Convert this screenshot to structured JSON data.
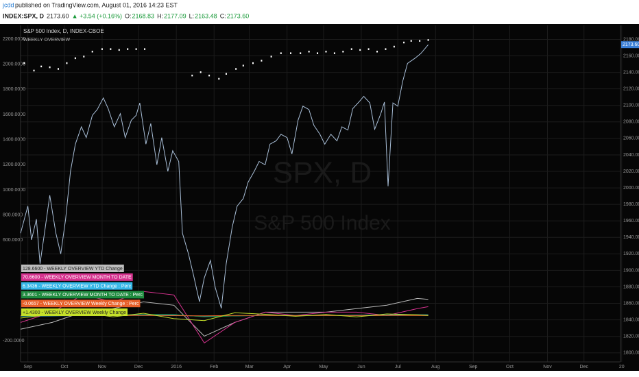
{
  "header": {
    "author": "jcdd",
    "published": "published on TradingView.com, August 01, 2016 14:23 EST",
    "symbol": "INDEX:SPX, D",
    "last": "2173.60",
    "change": "▲ +3.54 (+0.16%)",
    "open_label": "O:",
    "open": "2168.83",
    "high_label": "H:",
    "high": "2177.09",
    "low_label": "L:",
    "low": "2163.48",
    "close_label": "C:",
    "close": "2173.60"
  },
  "chart_data": {
    "type": "line",
    "title": "S&P 500 Index, D, INDEX-CBOE",
    "subtitle": "WEEKLY OVERVIEW",
    "watermark": [
      "SPX, D",
      "S&P 500 Index"
    ],
    "last_price_label": "2173.60",
    "grid": true,
    "xlim": [
      -6,
      487
    ],
    "xticks": [
      {
        "value": 0,
        "label": "Sep"
      },
      {
        "value": 30,
        "label": "Oct"
      },
      {
        "value": 61,
        "label": "Nov"
      },
      {
        "value": 91,
        "label": "Dec"
      },
      {
        "value": 122,
        "label": "2016"
      },
      {
        "value": 153,
        "label": "Feb"
      },
      {
        "value": 182,
        "label": "Mar"
      },
      {
        "value": 213,
        "label": "Apr"
      },
      {
        "value": 243,
        "label": "May"
      },
      {
        "value": 274,
        "label": "Jun"
      },
      {
        "value": 304,
        "label": "Jul"
      },
      {
        "value": 335,
        "label": "Aug"
      },
      {
        "value": 366,
        "label": "Sep"
      },
      {
        "value": 396,
        "label": "Oct"
      },
      {
        "value": 427,
        "label": "Nov"
      },
      {
        "value": 457,
        "label": "Dec"
      },
      {
        "value": 488,
        "label": "20"
      }
    ],
    "ylim": [
      -369,
      2309
    ],
    "yticks": [
      {
        "value": 2200,
        "label": "2200.0000"
      },
      {
        "value": 2000,
        "label": "2000.0000"
      },
      {
        "value": 1800,
        "label": "1800.0000"
      },
      {
        "value": 1600,
        "label": "1600.0000"
      },
      {
        "value": 1400,
        "label": "1400.0000"
      },
      {
        "value": 1200,
        "label": "1200.0000"
      },
      {
        "value": 1000,
        "label": "1000.0000"
      },
      {
        "value": 800,
        "label": "800.0000"
      },
      {
        "value": 600,
        "label": "600.0000"
      },
      {
        "value": -200,
        "label": "-200.0000"
      }
    ],
    "y2lim": [
      1789,
      2197
    ],
    "y2ticks": [
      {
        "value": 2180,
        "label": "2180.00"
      },
      {
        "value": 2160,
        "label": "2160.00"
      },
      {
        "value": 2140,
        "label": "2140.00"
      },
      {
        "value": 2120,
        "label": "2120.00"
      },
      {
        "value": 2100,
        "label": "2100.00"
      },
      {
        "value": 2080,
        "label": "2080.00"
      },
      {
        "value": 2060,
        "label": "2060.00"
      },
      {
        "value": 2040,
        "label": "2040.00"
      },
      {
        "value": 2020,
        "label": "2020.00"
      },
      {
        "value": 2000,
        "label": "2000.00"
      },
      {
        "value": 1980,
        "label": "1980.00"
      },
      {
        "value": 1960,
        "label": "1960.00"
      },
      {
        "value": 1940,
        "label": "1940.00"
      },
      {
        "value": 1920,
        "label": "1920.00"
      },
      {
        "value": 1900,
        "label": "1900.00"
      },
      {
        "value": 1880,
        "label": "1880.00"
      },
      {
        "value": 1860,
        "label": "1860.00"
      },
      {
        "value": 1840,
        "label": "1840.00"
      },
      {
        "value": 1820,
        "label": "1820.00"
      },
      {
        "value": 1800,
        "label": "1800.00"
      }
    ],
    "series": [
      {
        "style": "line",
        "axis": "y2",
        "color": "#a9bfd8",
        "x": [
          -6,
          0,
          3,
          7,
          10,
          14,
          18,
          23,
          27,
          31,
          35,
          39,
          44,
          48,
          53,
          57,
          62,
          66,
          71,
          76,
          80,
          85,
          89,
          92,
          97,
          101,
          106,
          110,
          115,
          119,
          124,
          127,
          132,
          136,
          141,
          145,
          150,
          154,
          159,
          163,
          168,
          172,
          177,
          181,
          186,
          190,
          195,
          199,
          204,
          208,
          213,
          217,
          222,
          226,
          231,
          235,
          240,
          244,
          249,
          254,
          258,
          263,
          267,
          272,
          276,
          281,
          285,
          290,
          293,
          296,
          300,
          304,
          308,
          312,
          318,
          323,
          329
        ],
        "values": [
          1945,
          1978,
          1937,
          1962,
          1908,
          1949,
          1991,
          1945,
          1920,
          1962,
          2020,
          2053,
          2074,
          2061,
          2088,
          2095,
          2109,
          2096,
          2074,
          2090,
          2061,
          2082,
          2088,
          2103,
          2053,
          2078,
          2028,
          2061,
          2020,
          2045,
          2032,
          1945,
          1920,
          1895,
          1862,
          1891,
          1912,
          1879,
          1854,
          1908,
          1953,
          1978,
          1987,
          2007,
          2020,
          2032,
          2028,
          2053,
          2057,
          2065,
          2061,
          2041,
          2082,
          2099,
          2095,
          2076,
          2065,
          2053,
          2065,
          2057,
          2074,
          2070,
          2096,
          2104,
          2111,
          2103,
          2071,
          2090,
          2104,
          2002,
          2103,
          2099,
          2129,
          2151,
          2157,
          2163,
          2173.6
        ]
      },
      {
        "style": "dots",
        "axis": "y2",
        "color": "#ffffff",
        "x": [
          -3,
          5,
          11,
          18,
          25,
          32,
          39,
          46,
          53,
          61,
          68,
          75,
          82,
          89,
          96,
          135,
          142,
          149,
          157,
          163,
          171,
          177,
          185,
          192,
          200,
          208,
          216,
          224,
          231,
          238,
          245,
          252,
          259,
          266,
          273,
          280,
          287,
          294,
          301,
          309,
          315,
          322,
          329
        ],
        "values": [
          2151,
          2142,
          2147,
          2146,
          2144,
          2151,
          2157,
          2159,
          2165,
          2168,
          2168,
          2167,
          2168,
          2168,
          2168,
          2136,
          2140,
          2136,
          2132,
          2138,
          2144,
          2148,
          2151,
          2154,
          2159,
          2163,
          2163,
          2163,
          2165,
          2163,
          2165,
          2163,
          2165,
          2168,
          2167,
          2168,
          2165,
          2168,
          2171,
          2176,
          2178,
          2178,
          2179
        ]
      },
      {
        "name": "128.6600 - WEEKLY OVERVIEW YTD Change",
        "style": "line",
        "color": "#bdbdbd",
        "x": [
          -6,
          20,
          45,
          70,
          95,
          120,
          145,
          170,
          195,
          220,
          245,
          270,
          295,
          320,
          329
        ],
        "values": [
          -109,
          -55,
          27,
          55,
          109,
          82,
          -164,
          -55,
          27,
          27,
          27,
          55,
          82,
          136,
          128.66
        ]
      },
      {
        "name": "70.6600 - WEEKLY OVERVIEW MONTH TO DATE",
        "style": "line",
        "color": "#d6338f",
        "x": [
          -6,
          20,
          45,
          70,
          95,
          120,
          145,
          170,
          195,
          220,
          245,
          270,
          295,
          320,
          329
        ],
        "values": [
          -55,
          27,
          164,
          109,
          191,
          164,
          -218,
          -55,
          27,
          0,
          27,
          27,
          0,
          55,
          70.66
        ]
      },
      {
        "name": "6.3436 - WEEKLY OVERVIEW YTD Change : Perc",
        "style": "line",
        "color": "#35b7e8",
        "x": [
          -6,
          20,
          45,
          70,
          95,
          120,
          145,
          170,
          195,
          220,
          245,
          270,
          295,
          320,
          329
        ],
        "values": [
          -5,
          -3,
          1,
          3,
          5,
          4,
          -8,
          -3,
          1,
          1,
          1,
          3,
          4,
          6,
          6.3436
        ]
      },
      {
        "name": "3.3601 - WEEKLY OVERVIEW MONTH TO DATE : Perc",
        "style": "line",
        "color": "#1f8c3f",
        "x": [
          -6,
          20,
          45,
          70,
          95,
          120,
          145,
          170,
          195,
          220,
          245,
          270,
          295,
          320,
          329
        ],
        "values": [
          -3,
          1,
          8,
          5,
          9,
          8,
          -10,
          -3,
          1,
          0,
          1,
          1,
          0,
          3,
          3.3601
        ]
      },
      {
        "name": "-0.0657 - WEEKLY OVERVIEW Weekly Change : Perc",
        "style": "line",
        "color": "#e8602a",
        "x": [
          -6,
          20,
          45,
          70,
          95,
          120,
          145,
          170,
          195,
          220,
          245,
          270,
          295,
          320,
          329
        ],
        "values": [
          -1,
          0.5,
          1,
          -0.5,
          0.8,
          -1,
          -2,
          1,
          0.5,
          -0.3,
          0.4,
          -0.5,
          0.6,
          0.3,
          -0.0657
        ]
      },
      {
        "name": "+1.4300 - WEEKLY OVERVIEW Weekly Change",
        "style": "line",
        "color": "#c5e12a",
        "x": [
          -6,
          20,
          45,
          70,
          95,
          120,
          145,
          170,
          195,
          220,
          245,
          270,
          295,
          320,
          329
        ],
        "values": [
          -20,
          10,
          25,
          -10,
          18,
          -25,
          -40,
          22,
          10,
          -6,
          8,
          -10,
          13,
          6,
          1.43
        ]
      }
    ]
  }
}
